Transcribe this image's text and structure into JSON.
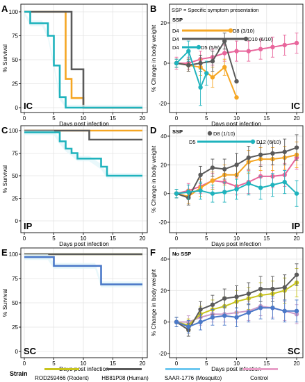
{
  "colors": {
    "rodent": "#f5a623",
    "human": "#5a5a5a",
    "mosquito": "#1fb3bd",
    "control": "#e8669c",
    "sc_rodent": "#c8c41e",
    "sc_mosquito": "#4a78c8",
    "sc_control": "#c99ac9",
    "band_cyan": "#dff5fa"
  },
  "legend": {
    "title": "Strain",
    "items": [
      {
        "label": "ROD259466 (Rodent)",
        "color": "#c8c41e"
      },
      {
        "label": "HB81P08 (Human)",
        "color": "#5a5a5a"
      },
      {
        "label": "SAAR-1776 (Mosquito)",
        "color": "#6ec8f0"
      },
      {
        "label": "Control",
        "color": "#e8a0c8"
      }
    ]
  },
  "chart_data": [
    {
      "panel": "A",
      "type": "line",
      "route": "IC",
      "xlabel": "Days post infection",
      "ylabel": "% Survival",
      "xlim": [
        0,
        20
      ],
      "ylim": [
        0,
        100
      ],
      "xticks": [
        0,
        5,
        10,
        15,
        20
      ],
      "yticks": [
        0,
        25,
        50,
        75,
        100
      ],
      "step": true,
      "series": [
        {
          "key": "rodent",
          "x": [
            0,
            6,
            7,
            8,
            10,
            20
          ],
          "y": [
            100,
            100,
            30,
            10,
            0,
            0
          ]
        },
        {
          "key": "human",
          "x": [
            0,
            6,
            8,
            10,
            20
          ],
          "y": [
            100,
            100,
            40,
            0,
            0
          ]
        },
        {
          "key": "mosquito",
          "x": [
            0,
            1,
            3,
            4,
            5,
            6,
            7,
            20
          ],
          "y": [
            100,
            88,
            88,
            75,
            44,
            11,
            0,
            0
          ]
        }
      ]
    },
    {
      "panel": "B",
      "type": "line",
      "route": "IC",
      "xlabel": "Days post infection",
      "ylabel": "% Change in body weight",
      "xlim": [
        0,
        20
      ],
      "ylim": [
        -20,
        20
      ],
      "xticks": [
        0,
        5,
        10,
        15,
        20
      ],
      "yticks": [
        -20,
        0,
        20
      ],
      "note": "SSP = Specific symptom presentation",
      "ssp_title": "SSP",
      "ssp": [
        {
          "start": "D4",
          "end": "D8 (3/10)",
          "key": "rodent"
        },
        {
          "start": "D4",
          "end": "D10 (6/10)",
          "key": "human"
        },
        {
          "start": "D4",
          "end": "D5 (5/9)",
          "key": "mosquito"
        }
      ],
      "series": [
        {
          "key": "control",
          "x": [
            0,
            2,
            4,
            6,
            8,
            10,
            12,
            14,
            16,
            18,
            20
          ],
          "y": [
            0,
            0,
            2,
            3,
            5,
            6,
            6,
            7,
            8,
            9,
            10
          ],
          "err": [
            3,
            3,
            4,
            4,
            4,
            5,
            5,
            5,
            5,
            5,
            5
          ]
        },
        {
          "key": "rodent",
          "x": [
            0,
            2,
            4,
            6,
            8,
            10
          ],
          "y": [
            0,
            -1,
            -2,
            -7,
            -2,
            -17
          ],
          "err": [
            2,
            3,
            4,
            5,
            4,
            0
          ]
        },
        {
          "key": "human",
          "x": [
            0,
            2,
            4,
            6,
            8,
            10
          ],
          "y": [
            0,
            -1,
            0,
            1,
            11,
            -9
          ],
          "err": [
            2,
            3,
            4,
            5,
            4,
            0
          ]
        },
        {
          "key": "mosquito",
          "x": [
            0,
            2,
            4,
            5
          ],
          "y": [
            0,
            6,
            -12,
            -5
          ],
          "err": [
            2,
            5,
            9,
            6
          ]
        }
      ]
    },
    {
      "panel": "C",
      "type": "line",
      "route": "IP",
      "xlabel": "Days post infection",
      "ylabel": "% Survival",
      "xlim": [
        0,
        20
      ],
      "ylim": [
        0,
        100
      ],
      "xticks": [
        0,
        5,
        10,
        15,
        20
      ],
      "yticks": [
        0,
        25,
        50,
        75,
        100
      ],
      "step": true,
      "series": [
        {
          "key": "rodent",
          "x": [
            0,
            20
          ],
          "y": [
            100,
            100
          ]
        },
        {
          "key": "human",
          "x": [
            0,
            10,
            11,
            20
          ],
          "y": [
            100,
            100,
            90,
            90
          ]
        },
        {
          "key": "mosquito",
          "x": [
            0,
            5,
            6,
            7,
            8,
            9,
            11,
            13,
            14,
            20
          ],
          "y": [
            98,
            98,
            88,
            80,
            75,
            69,
            69,
            60,
            50,
            50
          ]
        }
      ]
    },
    {
      "panel": "D",
      "type": "line",
      "route": "IP",
      "xlabel": "Days post infection",
      "ylabel": "% Change in body weight",
      "xlim": [
        0,
        20
      ],
      "ylim": [
        -20,
        40
      ],
      "xticks": [
        0,
        5,
        10,
        15,
        20
      ],
      "yticks": [
        -20,
        0,
        20,
        40
      ],
      "ssp_title": "SSP",
      "ssp": [
        {
          "start": "",
          "end": "D8 (1/10)",
          "key": "human"
        },
        {
          "start": "D5",
          "end": "D12 (6/10)",
          "key": "mosquito"
        }
      ],
      "series": [
        {
          "key": "control",
          "x": [
            0,
            2,
            4,
            6,
            8,
            10,
            12,
            14,
            16,
            18,
            20
          ],
          "y": [
            0,
            2,
            5,
            9,
            8,
            5,
            8,
            12,
            12,
            13,
            25
          ],
          "err": [
            3,
            5,
            5,
            5,
            6,
            6,
            8,
            8,
            8,
            8,
            8
          ]
        },
        {
          "key": "rodent",
          "x": [
            0,
            2,
            4,
            6,
            8,
            10,
            12,
            14,
            16,
            18,
            20
          ],
          "y": [
            0,
            -2,
            4,
            9,
            13,
            13,
            22,
            24,
            24,
            25,
            27
          ],
          "err": [
            3,
            5,
            6,
            6,
            7,
            7,
            8,
            8,
            8,
            8,
            9
          ]
        },
        {
          "key": "human",
          "x": [
            0,
            2,
            4,
            6,
            8,
            10,
            12,
            14,
            16,
            18,
            20
          ],
          "y": [
            0,
            -3,
            13,
            18,
            17,
            20,
            25,
            27,
            28,
            29,
            32
          ],
          "err": [
            3,
            5,
            6,
            6,
            7,
            8,
            8,
            8,
            8,
            9,
            9
          ]
        },
        {
          "key": "mosquito",
          "x": [
            0,
            2,
            4,
            6,
            8,
            10,
            12,
            14,
            16,
            18,
            20
          ],
          "y": [
            0,
            1,
            2,
            0,
            1,
            3,
            7,
            4,
            6,
            8,
            0
          ],
          "err": [
            3,
            5,
            6,
            6,
            7,
            7,
            8,
            8,
            8,
            8,
            9
          ]
        }
      ]
    },
    {
      "panel": "E",
      "type": "line",
      "route": "SC",
      "xlabel": "Days post infection",
      "ylabel": "% Survival",
      "xlim": [
        0,
        20
      ],
      "ylim": [
        0,
        100
      ],
      "xticks": [
        0,
        5,
        10,
        15,
        20
      ],
      "yticks": [
        0,
        25,
        50,
        75,
        100
      ],
      "step": true,
      "series": [
        {
          "key": "sc_rodent",
          "x": [
            0,
            20
          ],
          "y": [
            100,
            100
          ]
        },
        {
          "key": "human",
          "x": [
            0,
            20
          ],
          "y": [
            100,
            100
          ]
        },
        {
          "key": "sc_mosquito",
          "x": [
            0,
            4,
            5,
            12,
            13,
            20
          ],
          "y": [
            97,
            97,
            88,
            88,
            69,
            69
          ]
        }
      ]
    },
    {
      "panel": "F",
      "type": "line",
      "route": "SC",
      "xlabel": "Days post infection",
      "ylabel": "% Change in body weight",
      "xlim": [
        0,
        20
      ],
      "ylim": [
        -20,
        40
      ],
      "xticks": [
        0,
        5,
        10,
        15,
        20
      ],
      "yticks": [
        -20,
        0,
        20,
        40
      ],
      "ssp_title": "No SSP",
      "series": [
        {
          "key": "sc_control",
          "x": [
            0,
            2,
            4,
            6,
            8,
            10,
            12,
            14,
            16,
            18,
            20
          ],
          "y": [
            0,
            0,
            3,
            5,
            5,
            6,
            7,
            10,
            9,
            7,
            5
          ],
          "err": [
            3,
            4,
            5,
            5,
            5,
            6,
            6,
            6,
            6,
            6,
            6
          ]
        },
        {
          "key": "sc_rodent",
          "x": [
            0,
            2,
            4,
            6,
            8,
            10,
            12,
            14,
            16,
            18,
            20
          ],
          "y": [
            0,
            -2,
            5,
            8,
            10,
            13,
            15,
            17,
            18,
            20,
            25
          ],
          "err": [
            3,
            4,
            5,
            6,
            6,
            7,
            7,
            8,
            8,
            8,
            9
          ]
        },
        {
          "key": "human",
          "x": [
            0,
            2,
            4,
            6,
            8,
            10,
            12,
            14,
            16,
            18,
            20
          ],
          "y": [
            0,
            -5,
            8,
            11,
            15,
            16,
            18,
            21,
            21,
            22,
            30
          ],
          "err": [
            3,
            4,
            5,
            6,
            6,
            7,
            7,
            8,
            8,
            8,
            7
          ]
        },
        {
          "key": "sc_mosquito",
          "x": [
            0,
            2,
            4,
            6,
            8,
            10,
            12,
            14,
            16,
            18,
            20
          ],
          "y": [
            0,
            -3,
            0,
            3,
            4,
            3,
            6,
            9,
            9,
            7,
            7
          ],
          "err": [
            3,
            4,
            5,
            5,
            6,
            6,
            6,
            7,
            7,
            7,
            7
          ]
        }
      ]
    }
  ]
}
